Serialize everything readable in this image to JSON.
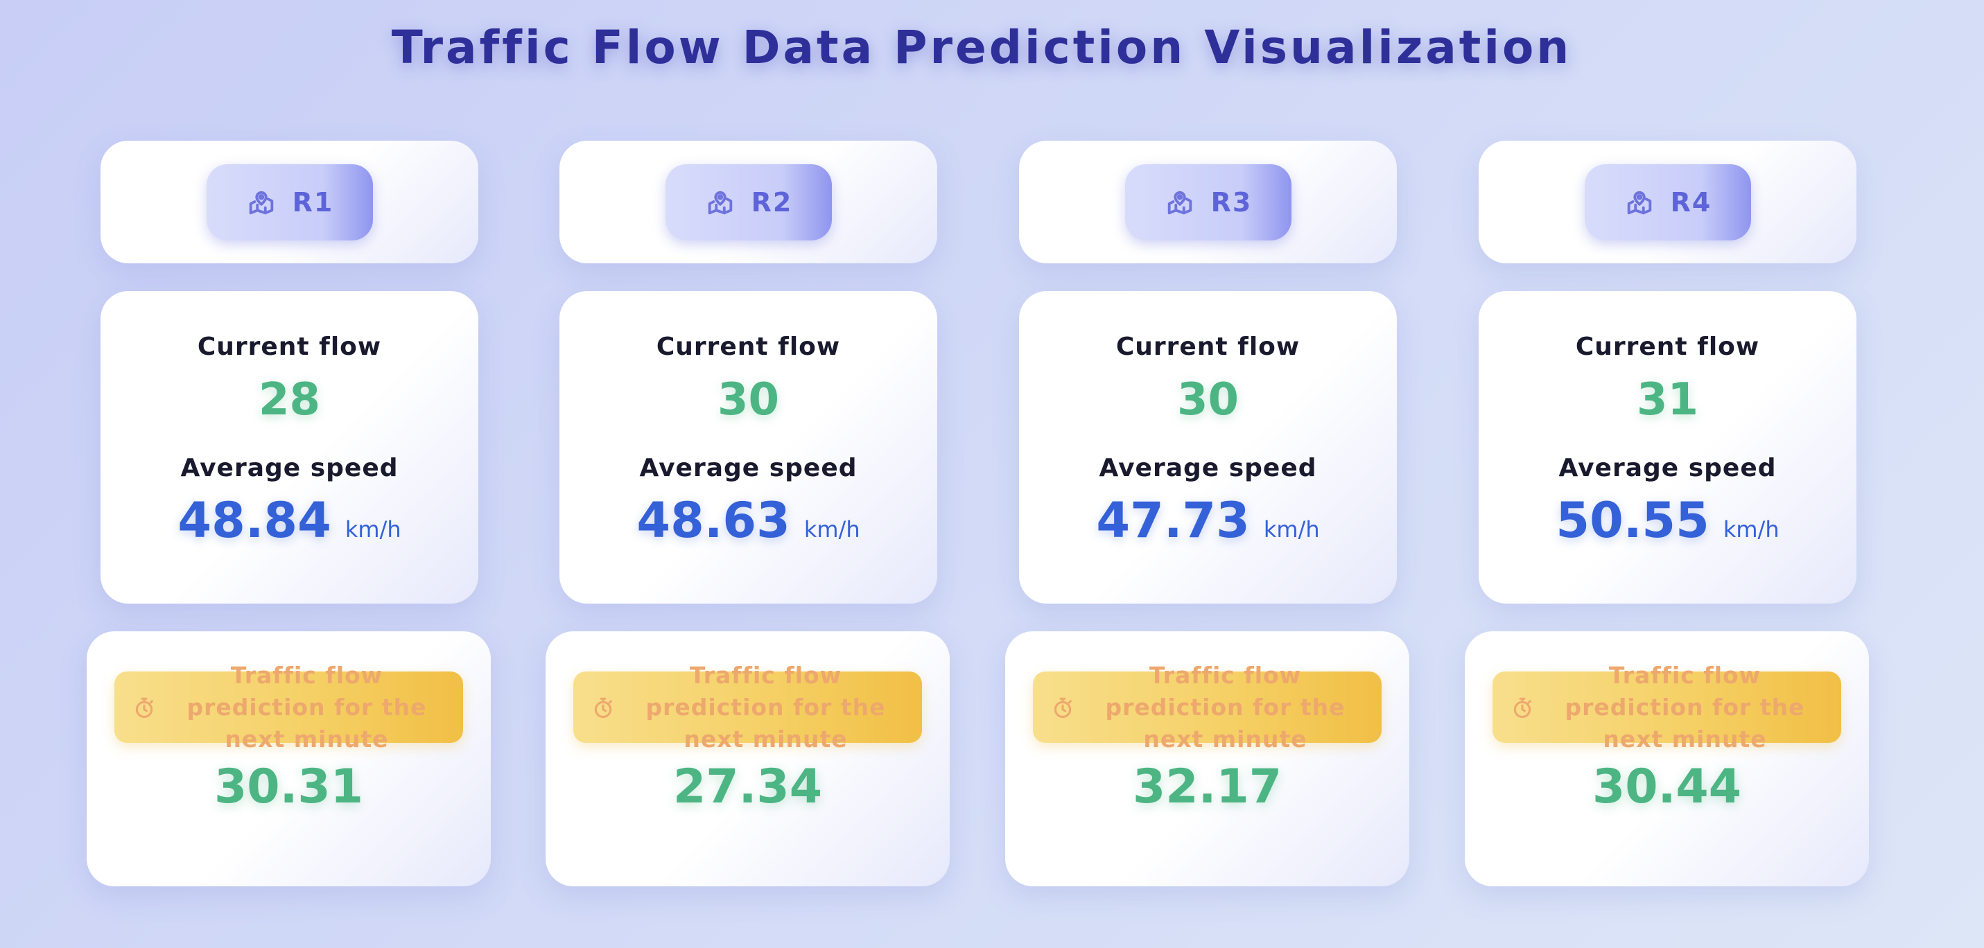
{
  "page": {
    "title": "Traffic Flow Data Prediction Visualization"
  },
  "labels": {
    "current_flow": "Current flow",
    "average_speed": "Average speed",
    "speed_unit": "km/h",
    "prediction": "Traffic flow prediction for the next minute"
  },
  "icons": {
    "region": "map-pin-icon",
    "prediction": "stopwatch-icon"
  },
  "colors": {
    "title": "#2f2f9a",
    "region_text": "#5d63d8",
    "flow_value": "#4cb583",
    "speed_value": "#3461d8",
    "prediction_banner": "#f5cf63",
    "prediction_text": "#eda86e"
  },
  "regions": [
    {
      "name": "R1",
      "current_flow": "28",
      "average_speed": "48.84",
      "predicted_flow": "30.31"
    },
    {
      "name": "R2",
      "current_flow": "30",
      "average_speed": "48.63",
      "predicted_flow": "27.34"
    },
    {
      "name": "R3",
      "current_flow": "30",
      "average_speed": "47.73",
      "predicted_flow": "32.17"
    },
    {
      "name": "R4",
      "current_flow": "31",
      "average_speed": "50.55",
      "predicted_flow": "30.44"
    }
  ]
}
